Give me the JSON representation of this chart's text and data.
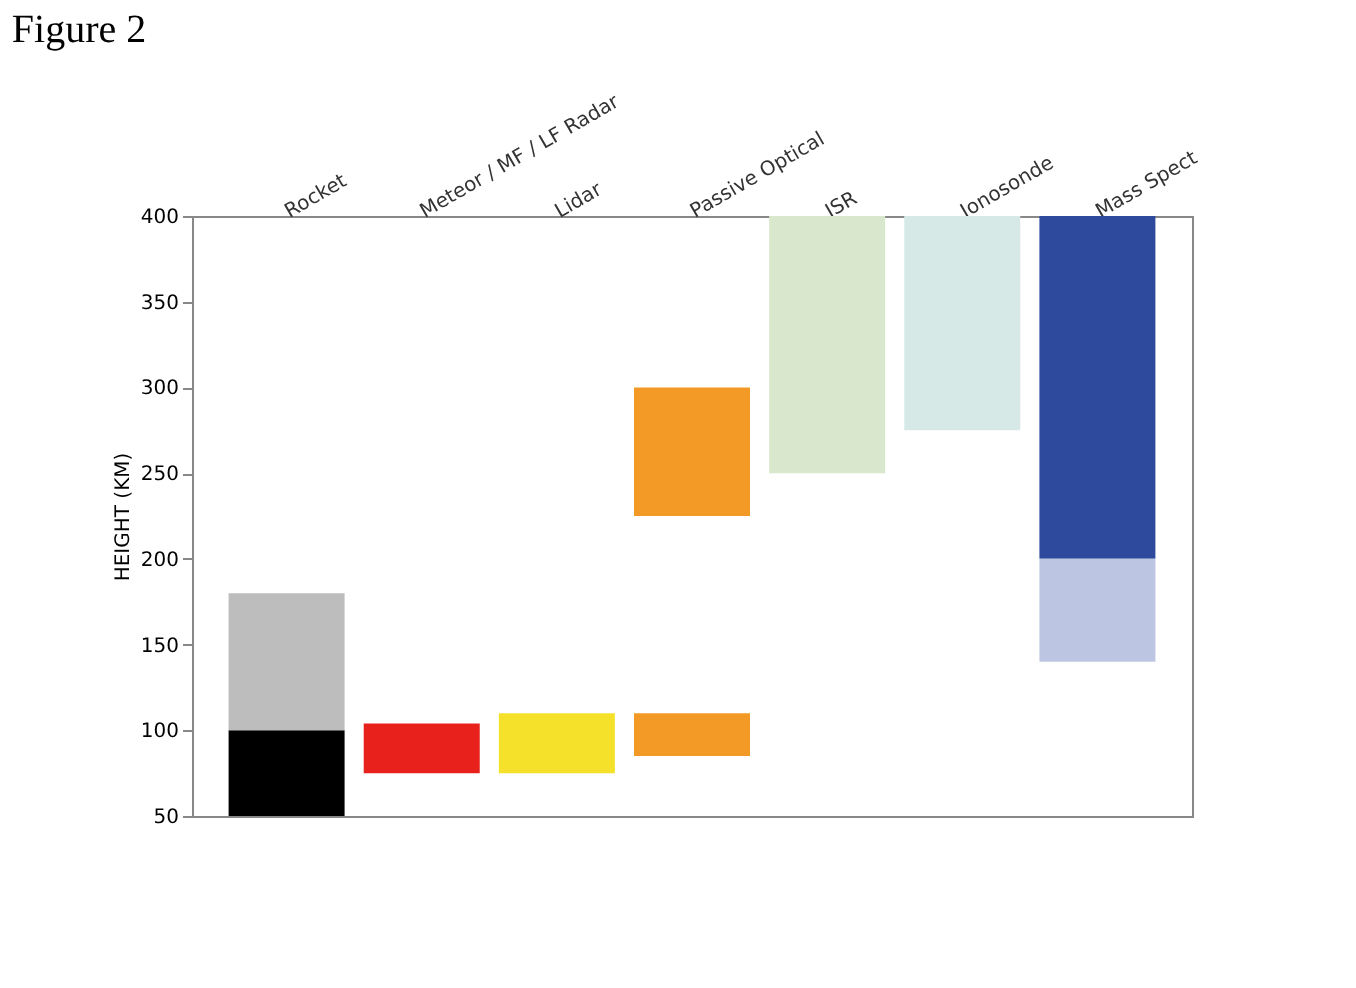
{
  "chart_data": {
    "type": "bar",
    "title": "Figure 2",
    "ylabel": "HEIGHT (KM)",
    "categories": [
      "Rocket",
      "Meteor / MF / LF Radar",
      "Lidar",
      "Passive Optical",
      "ISR",
      "Ionosonde",
      "Mass Spect"
    ],
    "series": [
      {
        "base": [
          50,
          75,
          75,
          85,
          null,
          null,
          200
        ],
        "values": [
          50,
          29,
          35,
          25,
          null,
          null,
          200
        ],
        "colors": [
          "#000000",
          "#e8211d",
          "#f5e12a",
          "#f29a25",
          null,
          null,
          "#2e4a9c"
        ]
      },
      {
        "base": [
          null,
          null,
          null,
          225,
          null,
          null,
          null
        ],
        "values": [
          null,
          null,
          null,
          75,
          null,
          null,
          null
        ],
        "colors": [
          null,
          null,
          null,
          "#f29a25",
          null,
          null,
          null
        ]
      },
      {
        "base": [
          100,
          null,
          null,
          null,
          250,
          275,
          140
        ],
        "values": [
          80,
          null,
          null,
          null,
          150,
          125,
          60
        ],
        "colors": [
          "#bdbdbd",
          null,
          null,
          null,
          "#d9e8cc",
          "#d6e9e6",
          "#bcc6e2"
        ]
      }
    ],
    "ylim": [
      50,
      400
    ],
    "yticks": [
      50,
      100,
      150,
      200,
      250,
      300,
      350,
      400
    ],
    "grid": false
  }
}
